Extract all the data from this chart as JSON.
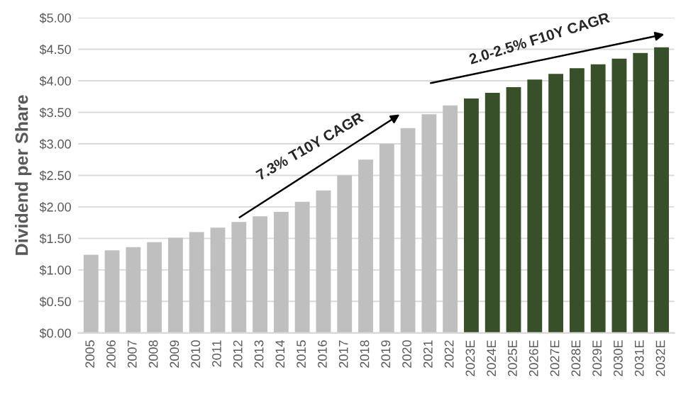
{
  "chart_data": {
    "type": "bar",
    "ylabel": "Dividend per Share",
    "categories": [
      "2005",
      "2006",
      "2007",
      "2008",
      "2009",
      "2010",
      "2011",
      "2012",
      "2013",
      "2014",
      "2015",
      "2016",
      "2017",
      "2018",
      "2019",
      "2020",
      "2021",
      "2022",
      "2023E",
      "2024E",
      "2025E",
      "2026E",
      "2027E",
      "2028E",
      "2029E",
      "2030E",
      "2031E",
      "2032E"
    ],
    "values": [
      1.24,
      1.31,
      1.36,
      1.44,
      1.51,
      1.6,
      1.67,
      1.76,
      1.85,
      1.92,
      2.08,
      2.26,
      2.5,
      2.75,
      3.0,
      3.25,
      3.47,
      3.61,
      3.72,
      3.81,
      3.9,
      4.02,
      4.11,
      4.2,
      4.26,
      4.35,
      4.44,
      4.53
    ],
    "colors": [
      "#bfbfbf",
      "#bfbfbf",
      "#bfbfbf",
      "#bfbfbf",
      "#bfbfbf",
      "#bfbfbf",
      "#bfbfbf",
      "#bfbfbf",
      "#bfbfbf",
      "#bfbfbf",
      "#bfbfbf",
      "#bfbfbf",
      "#bfbfbf",
      "#bfbfbf",
      "#bfbfbf",
      "#bfbfbf",
      "#bfbfbf",
      "#bfbfbf",
      "#375623",
      "#375623",
      "#375623",
      "#375623",
      "#375623",
      "#375623",
      "#375623",
      "#375623",
      "#375623",
      "#375623"
    ],
    "ylim": [
      0,
      5
    ],
    "yticks": [
      {
        "value": 0,
        "label": "$0.00"
      },
      {
        "value": 0.5,
        "label": "$0.50"
      },
      {
        "value": 1,
        "label": "$1.00"
      },
      {
        "value": 1.5,
        "label": "$1.50"
      },
      {
        "value": 2,
        "label": "$2.00"
      },
      {
        "value": 2.5,
        "label": "$2.50"
      },
      {
        "value": 3,
        "label": "$3.00"
      },
      {
        "value": 3.5,
        "label": "$3.50"
      },
      {
        "value": 4,
        "label": "$4.00"
      },
      {
        "value": 4.5,
        "label": "$4.50"
      },
      {
        "value": 5,
        "label": "$5.00"
      }
    ],
    "grid": "y",
    "annotations": [
      "7.3% T10Y CAGR",
      "2.0-2.5% F10Y CAGR"
    ]
  }
}
